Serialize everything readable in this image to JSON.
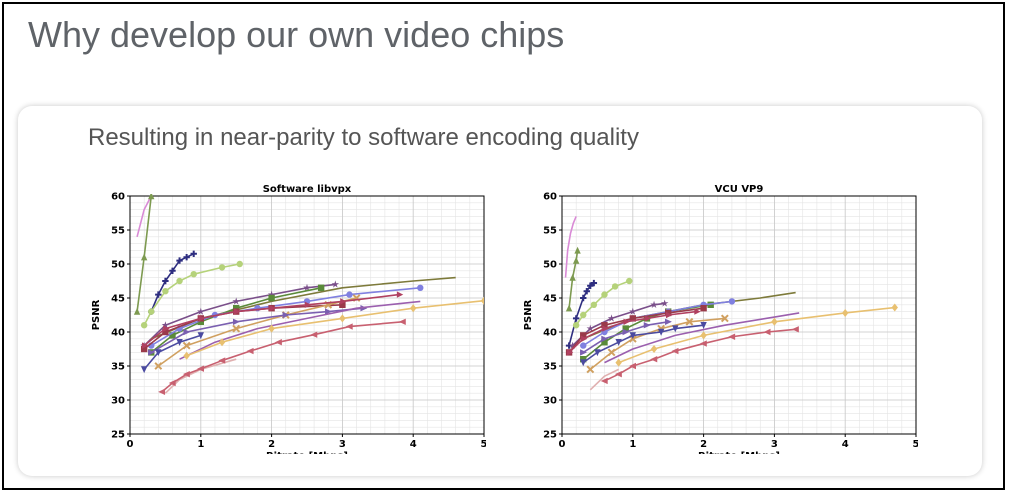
{
  "slide": {
    "title": "Why develop our own video chips"
  },
  "card": {
    "subtitle": "Resulting in near-parity to software encoding quality"
  },
  "chart_data": [
    {
      "type": "line",
      "title": "Software libvpx",
      "xlabel": "Bitrate [Mbps]",
      "ylabel": "PSNR",
      "xlim": [
        0,
        5
      ],
      "ylim": [
        25,
        60
      ],
      "xticks": [
        0,
        1,
        2,
        3,
        4,
        5
      ],
      "yticks": [
        25,
        30,
        35,
        40,
        45,
        50,
        55,
        60
      ],
      "grid": true,
      "series": [
        {
          "color": "#d98ad6",
          "marker": "none",
          "x": [
            0.1,
            0.15,
            0.2,
            0.25,
            0.3
          ],
          "y": [
            54,
            56,
            58,
            59,
            60
          ]
        },
        {
          "color": "#7d9a50",
          "marker": "triangle-up",
          "x": [
            0.1,
            0.2,
            0.3
          ],
          "y": [
            43,
            51,
            60
          ]
        },
        {
          "color": "#2e2e80",
          "marker": "plus",
          "x": [
            0.3,
            0.4,
            0.5,
            0.6,
            0.7,
            0.8,
            0.9
          ],
          "y": [
            43,
            45.5,
            47.5,
            49,
            50.5,
            51,
            51.5
          ]
        },
        {
          "color": "#b5d27a",
          "marker": "circle",
          "x": [
            0.2,
            0.3,
            0.5,
            0.7,
            0.9,
            1.3,
            1.55
          ],
          "y": [
            41,
            43,
            46,
            47.5,
            48.5,
            49.5,
            50
          ]
        },
        {
          "color": "#7a4f8a",
          "marker": "star",
          "x": [
            0.2,
            0.5,
            1.0,
            1.5,
            2.0,
            2.5,
            2.9
          ],
          "y": [
            38,
            41,
            43,
            44.5,
            45.5,
            46.5,
            47
          ]
        },
        {
          "color": "#7d7a3a",
          "marker": "none",
          "x": [
            0.3,
            1.0,
            2.0,
            3.0,
            4.0,
            4.6
          ],
          "y": [
            39,
            42,
            44.5,
            46.5,
            47.5,
            48
          ]
        },
        {
          "color": "#5a8a3a",
          "marker": "square",
          "x": [
            0.3,
            0.6,
            1.0,
            1.5,
            2.0,
            2.7
          ],
          "y": [
            37,
            39.5,
            41.5,
            43.5,
            45,
            46.5
          ]
        },
        {
          "color": "#8080e0",
          "marker": "circle",
          "x": [
            0.3,
            0.7,
            1.2,
            1.8,
            2.5,
            3.1,
            4.1
          ],
          "y": [
            38,
            40.5,
            42.5,
            43.5,
            44.5,
            45.5,
            46.5
          ]
        },
        {
          "color": "#9a3a4a",
          "marker": "square",
          "x": [
            0.2,
            0.5,
            1.0,
            1.5,
            2.0,
            3.0
          ],
          "y": [
            37.5,
            40,
            42,
            43,
            43.5,
            44
          ]
        },
        {
          "color": "#d0a060",
          "marker": "x",
          "x": [
            0.4,
            0.8,
            1.5,
            2.2,
            2.8,
            3.2
          ],
          "y": [
            35,
            38,
            40.5,
            42.5,
            44,
            45
          ]
        },
        {
          "color": "#b04060",
          "marker": "right-triangle",
          "x": [
            0.2,
            0.5,
            1.0,
            1.5,
            2.0,
            2.5,
            3.0,
            3.8
          ],
          "y": [
            38,
            40.5,
            42,
            43,
            43.5,
            44,
            44.5,
            45.5
          ]
        },
        {
          "color": "#7a5fb0",
          "marker": "triangle-right",
          "x": [
            0.3,
            0.8,
            1.5,
            2.2,
            2.8,
            3.3
          ],
          "y": [
            37,
            40,
            41.5,
            42.5,
            43,
            43.5
          ]
        },
        {
          "color": "#9b5fae",
          "marker": "none",
          "x": [
            0.7,
            1.2,
            1.8,
            2.5,
            3.2,
            4.1
          ],
          "y": [
            36,
            38.5,
            40.5,
            42,
            43.5,
            44.5
          ]
        },
        {
          "color": "#4a4aa0",
          "marker": "triangle-down",
          "x": [
            0.2,
            0.4,
            0.7,
            1.0
          ],
          "y": [
            34.5,
            37,
            38.5,
            39.5
          ]
        },
        {
          "color": "#e0b0b0",
          "marker": "none",
          "x": [
            0.5,
            0.7,
            1.0,
            1.5
          ],
          "y": [
            31,
            33,
            34.5,
            36
          ]
        },
        {
          "color": "#e8c070",
          "marker": "diamond",
          "x": [
            0.8,
            1.3,
            2.0,
            3.0,
            4.0,
            5.0
          ],
          "y": [
            36.5,
            38.5,
            40.5,
            42,
            43.5,
            44.6
          ]
        },
        {
          "color": "#c86070",
          "marker": "triangle-left",
          "x": [
            0.45,
            0.6,
            0.8,
            1.0,
            1.3,
            1.7,
            2.1,
            2.6,
            3.1,
            3.85
          ],
          "y": [
            31.2,
            32.5,
            33.8,
            34.6,
            35.8,
            37.2,
            38.5,
            39.6,
            40.8,
            41.5
          ]
        }
      ]
    },
    {
      "type": "line",
      "title": "VCU VP9",
      "xlabel": "Bitrate [Mbps]",
      "ylabel": "PSNR",
      "xlim": [
        0,
        5
      ],
      "ylim": [
        25,
        60
      ],
      "xticks": [
        0,
        1,
        2,
        3,
        4,
        5
      ],
      "yticks": [
        25,
        30,
        35,
        40,
        45,
        50,
        55,
        60
      ],
      "grid": true,
      "series": [
        {
          "color": "#d98ad6",
          "marker": "none",
          "x": [
            0.05,
            0.08,
            0.12,
            0.16,
            0.2
          ],
          "y": [
            48,
            52,
            54.5,
            56,
            57
          ]
        },
        {
          "color": "#7d9a50",
          "marker": "triangle-up",
          "x": [
            0.1,
            0.15,
            0.2,
            0.22
          ],
          "y": [
            43.5,
            48,
            50.5,
            52
          ]
        },
        {
          "color": "#2e2e80",
          "marker": "plus",
          "x": [
            0.1,
            0.2,
            0.3,
            0.35,
            0.4,
            0.45
          ],
          "y": [
            38,
            42,
            45,
            46,
            46.8,
            47.2
          ]
        },
        {
          "color": "#b5d27a",
          "marker": "circle",
          "x": [
            0.2,
            0.3,
            0.45,
            0.6,
            0.75,
            0.95
          ],
          "y": [
            41,
            42.5,
            44,
            45.5,
            46.7,
            47.5
          ]
        },
        {
          "color": "#7a4f8a",
          "marker": "star",
          "x": [
            0.15,
            0.4,
            0.7,
            1.0,
            1.3,
            1.45
          ],
          "y": [
            38,
            40.5,
            42,
            43,
            44,
            44.2
          ]
        },
        {
          "color": "#7d7a3a",
          "marker": "none",
          "x": [
            0.3,
            1.0,
            2.0,
            2.8,
            3.3
          ],
          "y": [
            39,
            42,
            44,
            45,
            45.8
          ]
        },
        {
          "color": "#5a8a3a",
          "marker": "square",
          "x": [
            0.3,
            0.6,
            0.9,
            1.2,
            1.5,
            2.1
          ],
          "y": [
            36,
            38.5,
            40.5,
            42,
            43,
            44
          ]
        },
        {
          "color": "#8080e0",
          "marker": "circle",
          "x": [
            0.3,
            0.6,
            1.0,
            1.5,
            2.0,
            2.4
          ],
          "y": [
            38,
            40,
            42,
            43,
            44,
            44.5
          ]
        },
        {
          "color": "#9a3a4a",
          "marker": "square",
          "x": [
            0.1,
            0.3,
            0.6,
            1.0,
            1.5,
            2.0
          ],
          "y": [
            37,
            39.5,
            41,
            42,
            42.8,
            43.5
          ]
        },
        {
          "color": "#d0a060",
          "marker": "x",
          "x": [
            0.4,
            0.7,
            1.0,
            1.4,
            1.8,
            2.3
          ],
          "y": [
            34.5,
            37,
            39,
            40.5,
            41.5,
            42
          ]
        },
        {
          "color": "#b04060",
          "marker": "right-triangle",
          "x": [
            0.1,
            0.3,
            0.6,
            0.9,
            1.2,
            1.5,
            1.9
          ],
          "y": [
            37,
            39,
            40.5,
            41.5,
            42,
            42.5,
            43
          ]
        },
        {
          "color": "#7a5fb0",
          "marker": "triangle-right",
          "x": [
            0.3,
            0.6,
            0.9,
            1.2,
            1.5
          ],
          "y": [
            37,
            39,
            40,
            41,
            41.5
          ]
        },
        {
          "color": "#9b5fae",
          "marker": "none",
          "x": [
            0.6,
            1.0,
            1.6,
            2.3,
            3.0,
            3.35
          ],
          "y": [
            35.5,
            37.5,
            39.5,
            41,
            42.2,
            42.8
          ]
        },
        {
          "color": "#4a4aa0",
          "marker": "triangle-down",
          "x": [
            0.3,
            0.5,
            0.8,
            1.0,
            1.4,
            1.6,
            2.0
          ],
          "y": [
            35.5,
            37,
            38.5,
            39.5,
            40,
            40.5,
            41
          ]
        },
        {
          "color": "#e0b0b0",
          "marker": "none",
          "x": [
            0.4,
            0.6,
            0.8
          ],
          "y": [
            31.5,
            33.5,
            34.5
          ]
        },
        {
          "color": "#e8c070",
          "marker": "diamond",
          "x": [
            0.8,
            1.3,
            2.0,
            3.0,
            4.0,
            4.7
          ],
          "y": [
            35.5,
            37.5,
            39.5,
            41.5,
            42.8,
            43.6
          ]
        },
        {
          "color": "#c86070",
          "marker": "triangle-left",
          "x": [
            0.6,
            0.8,
            1.0,
            1.3,
            1.6,
            2.0,
            2.4,
            2.9,
            3.3
          ],
          "y": [
            32.8,
            33.8,
            35,
            36,
            37.2,
            38.3,
            39.3,
            40,
            40.4
          ]
        }
      ]
    }
  ]
}
